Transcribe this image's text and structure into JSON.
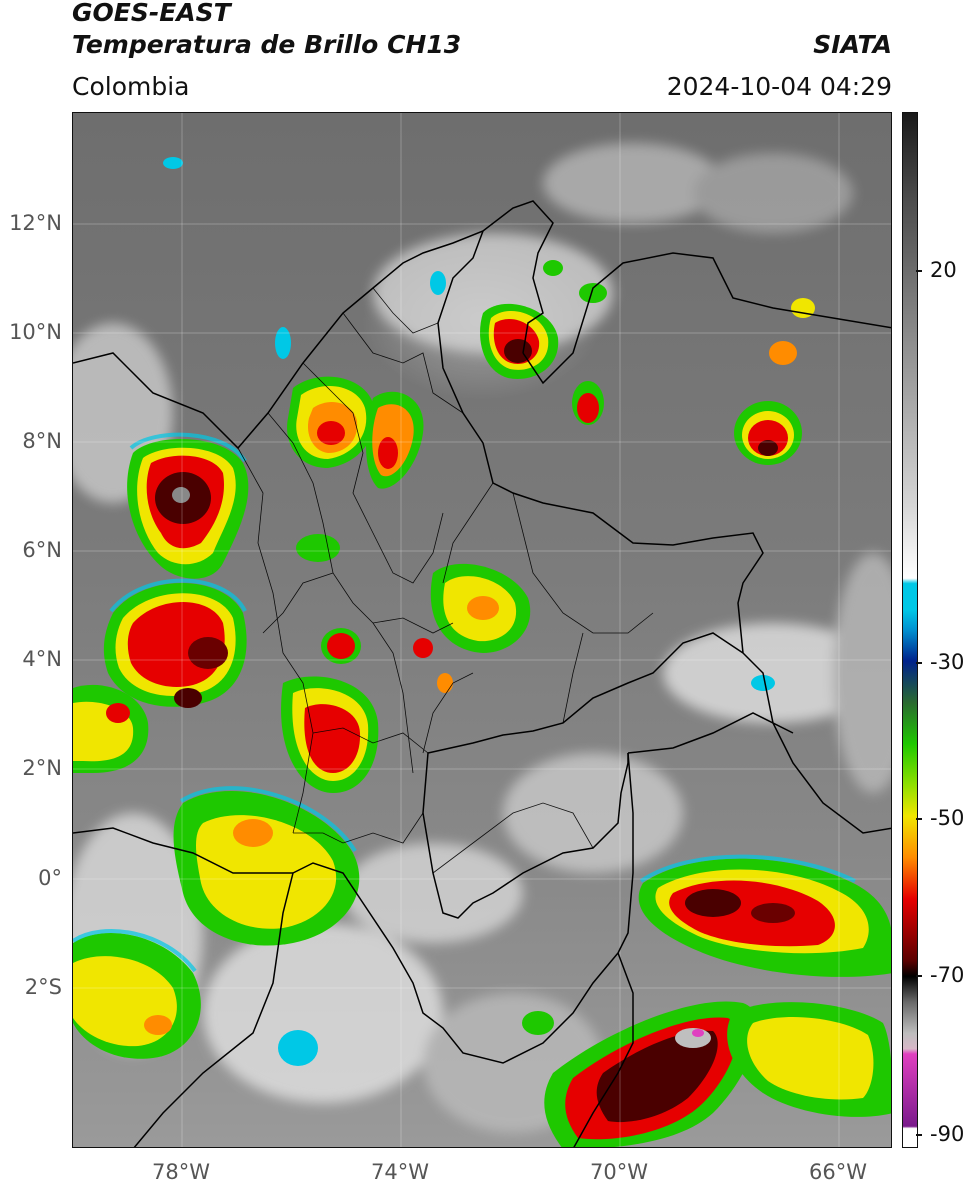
{
  "header": {
    "satellite": "GOES-EAST",
    "product": "Temperatura de Brillo CH13",
    "region": "Colombia",
    "agency": "SIATA",
    "datetime": "2024-10-04 04:29"
  },
  "axes": {
    "lat_labels": [
      "12°N",
      "10°N",
      "8°N",
      "6°N",
      "4°N",
      "2°N",
      "0°",
      "2°S"
    ],
    "lon_labels": [
      "78°W",
      "74°W",
      "70°W",
      "66°W"
    ]
  },
  "colorbar": {
    "labels": [
      "20",
      "-30",
      "-50",
      "-70",
      "-90"
    ],
    "colors": {
      "gray_dark": "#1a1a1a",
      "gray_light": "#ffffff",
      "cyan": "#00c8e6",
      "blue": "#00228c",
      "green": "#1ec800",
      "yellow": "#f0e600",
      "orange": "#ff8c00",
      "red": "#e60000",
      "darkred": "#5a0000",
      "magenta": "#e040c0",
      "purple": "#7a1a8c"
    }
  }
}
